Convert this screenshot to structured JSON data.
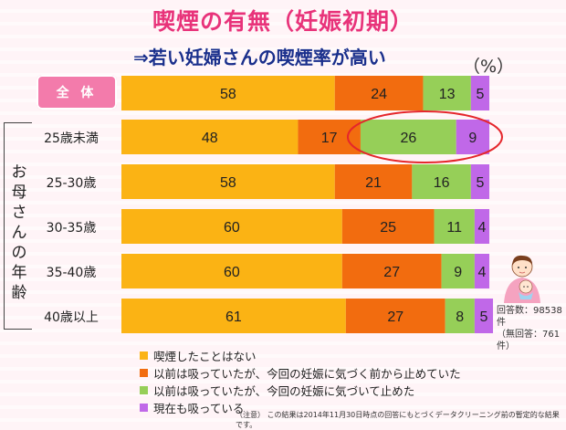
{
  "title": "喫煙の有無（妊娠初期）",
  "subtitle": "⇒若い妊婦さんの喫煙率が高い",
  "percent_unit": "（%）",
  "group_label": "お母さんの年齢",
  "counts": {
    "answered": "回答数：98538件",
    "unanswered": "（無回答：761件）"
  },
  "note": "（注意） この結果は2014年11月30日時点の回答にもとづくデータクリーニング前の暫定的な結果です。",
  "colors": {
    "never": "#fbb314",
    "quit_before": "#f26c0f",
    "quit_pregnancy": "#96cf58",
    "current": "#c068e8",
    "highlight": "#e5262b"
  },
  "chart_data": {
    "type": "bar",
    "orientation": "horizontal",
    "stacked": true,
    "xlim": [
      0,
      100
    ],
    "categories": [
      "全 体",
      "25歳未満",
      "25-30歳",
      "30-35歳",
      "35-40歳",
      "40歳以上"
    ],
    "series": [
      {
        "name": "喫煙したことはない",
        "values": [
          58,
          48,
          58,
          60,
          60,
          61
        ]
      },
      {
        "name": "以前は吸っていたが、今回の妊娠に気づく前から止めていた",
        "values": [
          24,
          17,
          21,
          25,
          27,
          27
        ]
      },
      {
        "name": "以前は吸っていたが、今回の妊娠に気づいて止めた",
        "values": [
          13,
          26,
          16,
          11,
          9,
          8
        ]
      },
      {
        "name": "現在も吸っている",
        "values": [
          5,
          9,
          5,
          4,
          4,
          5
        ]
      }
    ],
    "highlight": {
      "category": "25歳未満",
      "series": [
        "以前は吸っていたが、今回の妊娠に気づいて止めた",
        "現在も吸っている"
      ]
    }
  }
}
